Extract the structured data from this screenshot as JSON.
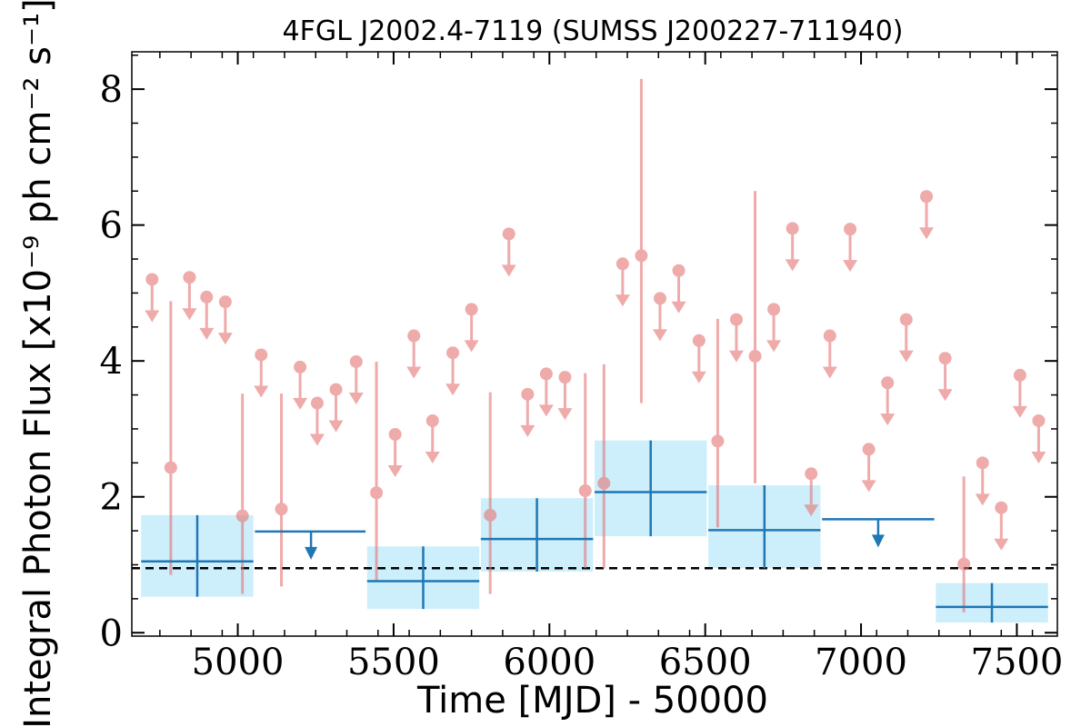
{
  "chart_data": {
    "type": "scatter",
    "title": "4FGL J2002.4-7119 (SUMSS J200227-711940)",
    "xlabel": "Time [MJD] - 50000",
    "ylabel": "Integral Photon Flux [x10⁻⁹ ph cm⁻² s⁻¹]",
    "xlim": [
      4660,
      7630
    ],
    "ylim": [
      -0.05,
      8.55
    ],
    "xticks": [
      5000,
      5500,
      6000,
      6500,
      7000,
      7500
    ],
    "xtick_labels": [
      "5000",
      "5500",
      "6000",
      "6500",
      "7000",
      "7500"
    ],
    "yticks": [
      0,
      2,
      4,
      6,
      8
    ],
    "ytick_labels": [
      "0",
      "2",
      "4",
      "6",
      "8"
    ],
    "grid": false,
    "reference_line": {
      "y": 0.95,
      "style": "dashed",
      "color": "#000000"
    },
    "colors": {
      "fine": "#e57373",
      "fine_alpha": 0.6,
      "coarse": "#1f77b4",
      "band": "#cdeefb"
    },
    "series": [
      {
        "detections": [
          {
            "x": 4785,
            "y": 2.43,
            "lo": 0.85,
            "hi": 4.88
          },
          {
            "x": 5015,
            "y": 1.72,
            "lo": 0.57,
            "hi": 3.52
          },
          {
            "x": 5140,
            "y": 1.82,
            "lo": 0.68,
            "hi": 3.52
          },
          {
            "x": 5445,
            "y": 2.06,
            "lo": 0.75,
            "hi": 3.99
          },
          {
            "x": 5810,
            "y": 1.73,
            "lo": 0.57,
            "hi": 3.54
          },
          {
            "x": 6115,
            "y": 2.09,
            "lo": 0.95,
            "hi": 3.82
          },
          {
            "x": 6175,
            "y": 2.2,
            "lo": 0.95,
            "hi": 3.95
          },
          {
            "x": 6295,
            "y": 5.55,
            "lo": 3.38,
            "hi": 8.15
          },
          {
            "x": 6540,
            "y": 2.82,
            "lo": 1.55,
            "hi": 4.62
          },
          {
            "x": 6660,
            "y": 4.07,
            "lo": 2.2,
            "hi": 6.5
          },
          {
            "x": 7330,
            "y": 1.01,
            "lo": 0.3,
            "hi": 2.3
          }
        ],
        "upper_limits": [
          {
            "x": 4725,
            "y": 5.2
          },
          {
            "x": 4845,
            "y": 5.23
          },
          {
            "x": 4900,
            "y": 4.94
          },
          {
            "x": 4960,
            "y": 4.87
          },
          {
            "x": 5075,
            "y": 4.09
          },
          {
            "x": 5200,
            "y": 3.91
          },
          {
            "x": 5255,
            "y": 3.38
          },
          {
            "x": 5315,
            "y": 3.58
          },
          {
            "x": 5380,
            "y": 3.99
          },
          {
            "x": 5505,
            "y": 2.92
          },
          {
            "x": 5565,
            "y": 4.37
          },
          {
            "x": 5625,
            "y": 3.12
          },
          {
            "x": 5690,
            "y": 4.12
          },
          {
            "x": 5750,
            "y": 4.76
          },
          {
            "x": 5870,
            "y": 5.87
          },
          {
            "x": 5930,
            "y": 3.51
          },
          {
            "x": 5990,
            "y": 3.81
          },
          {
            "x": 6050,
            "y": 3.76
          },
          {
            "x": 6235,
            "y": 5.43
          },
          {
            "x": 6355,
            "y": 4.92
          },
          {
            "x": 6415,
            "y": 5.33
          },
          {
            "x": 6480,
            "y": 4.3
          },
          {
            "x": 6600,
            "y": 4.61
          },
          {
            "x": 6720,
            "y": 4.76
          },
          {
            "x": 6780,
            "y": 5.95
          },
          {
            "x": 6840,
            "y": 2.34
          },
          {
            "x": 6900,
            "y": 4.37
          },
          {
            "x": 6965,
            "y": 5.94
          },
          {
            "x": 7025,
            "y": 2.7
          },
          {
            "x": 7085,
            "y": 3.68
          },
          {
            "x": 7145,
            "y": 4.61
          },
          {
            "x": 7210,
            "y": 6.42
          },
          {
            "x": 7270,
            "y": 4.04
          },
          {
            "x": 7390,
            "y": 2.5
          },
          {
            "x": 7450,
            "y": 1.84
          },
          {
            "x": 7510,
            "y": 3.79
          },
          {
            "x": 7570,
            "y": 3.12
          }
        ]
      },
      {
        "detections": [
          {
            "x_lo": 4690,
            "x": 4870,
            "x_hi": 5050,
            "y": 1.05,
            "lo": 0.53,
            "hi": 1.73
          },
          {
            "x_lo": 5415,
            "x": 5595,
            "x_hi": 5775,
            "y": 0.76,
            "lo": 0.35,
            "hi": 1.27
          },
          {
            "x_lo": 5780,
            "x": 5960,
            "x_hi": 6140,
            "y": 1.38,
            "lo": 0.9,
            "hi": 1.98
          },
          {
            "x_lo": 6145,
            "x": 6325,
            "x_hi": 6505,
            "y": 2.07,
            "lo": 1.42,
            "hi": 2.83
          },
          {
            "x_lo": 6510,
            "x": 6690,
            "x_hi": 6870,
            "y": 1.51,
            "lo": 0.95,
            "hi": 2.17
          },
          {
            "x_lo": 7240,
            "x": 7420,
            "x_hi": 7600,
            "y": 0.38,
            "lo": 0.15,
            "hi": 0.73
          }
        ],
        "upper_limits": [
          {
            "x_lo": 5055,
            "x": 5235,
            "x_hi": 5410,
            "y": 1.49
          },
          {
            "x_lo": 6875,
            "x": 7055,
            "x_hi": 7235,
            "y": 1.67
          }
        ]
      }
    ]
  }
}
